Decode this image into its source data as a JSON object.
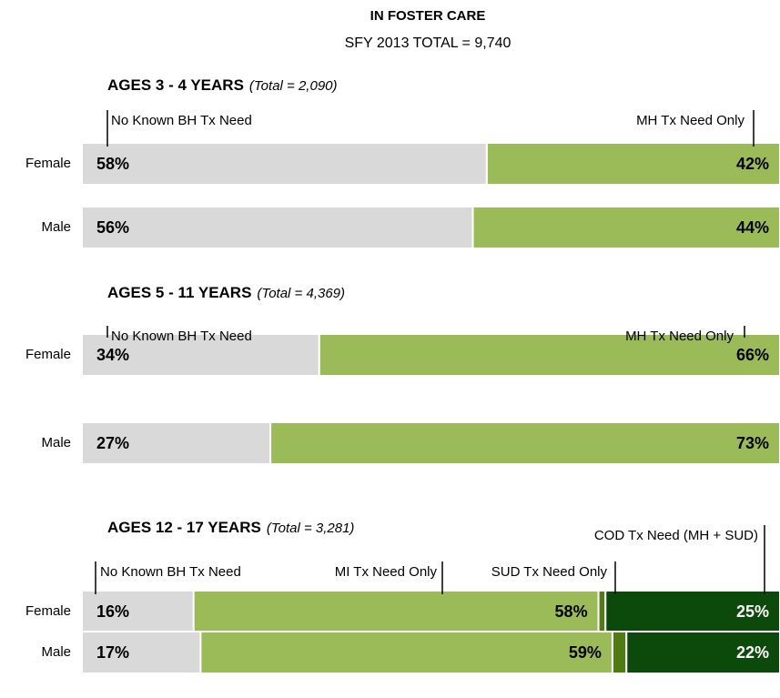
{
  "header": {
    "title": "IN FOSTER CARE",
    "subtitle": "SFY 2013  TOTAL =  9,740"
  },
  "chart_data": [
    {
      "type": "bar",
      "orientation": "horizontal",
      "stacked": true,
      "title": "AGES 3 - 4 YEARS",
      "subtitle": "(Total = 2,090)",
      "categories": [
        "Female",
        "Male"
      ],
      "xlim": [
        0,
        100
      ],
      "series": [
        {
          "name": "No Known BH Tx Need",
          "color": "#d9d9d9",
          "values": [
            58,
            56
          ],
          "value_labels": [
            "58%",
            "56%"
          ]
        },
        {
          "name": "MH Tx Need Only",
          "color": "#9bbb59",
          "values": [
            42,
            44
          ],
          "value_labels": [
            "42%",
            "44%"
          ]
        }
      ]
    },
    {
      "type": "bar",
      "orientation": "horizontal",
      "stacked": true,
      "title": "AGES 5 - 11 YEARS",
      "subtitle": "(Total = 4,369)",
      "categories": [
        "Female",
        "Male"
      ],
      "xlim": [
        0,
        100
      ],
      "series": [
        {
          "name": "No Known BH Tx Need",
          "color": "#d9d9d9",
          "values": [
            34,
            27
          ],
          "value_labels": [
            "34%",
            "27%"
          ]
        },
        {
          "name": "MH Tx Need Only",
          "color": "#9bbb59",
          "values": [
            66,
            73
          ],
          "value_labels": [
            "66%",
            "73%"
          ]
        }
      ]
    },
    {
      "type": "bar",
      "orientation": "horizontal",
      "stacked": true,
      "title": "AGES 12 - 17 YEARS",
      "subtitle": "(Total = 3,281)",
      "categories": [
        "Female",
        "Male"
      ],
      "xlim": [
        0,
        100
      ],
      "series": [
        {
          "name": "No Known BH Tx Need",
          "color": "#d9d9d9",
          "values": [
            16,
            17
          ],
          "value_labels": [
            "16%",
            "17%"
          ]
        },
        {
          "name": "MI Tx Need Only",
          "color": "#9bbb59",
          "values": [
            58,
            59
          ],
          "value_labels": [
            "58%",
            "59%"
          ]
        },
        {
          "name": "SUD Tx Need Only",
          "color": "#4f7a14",
          "values": [
            1,
            2
          ]
        },
        {
          "name": "COD Tx Need (MH + SUD)",
          "color": "#0b4a0b",
          "values": [
            25,
            22
          ],
          "value_labels": [
            "25%",
            "22%"
          ]
        }
      ]
    }
  ]
}
